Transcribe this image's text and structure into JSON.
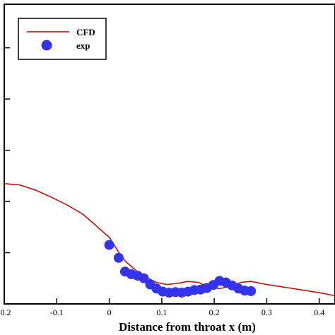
{
  "chart_data": {
    "type": "line",
    "title": "",
    "xlabel": "Distance from throat x (m)",
    "ylabel": "",
    "xlim": [
      -0.2,
      0.43
    ],
    "ylim": [
      0.0,
      5.85
    ],
    "x_ticks": [
      -0.2,
      -0.1,
      0,
      0.1,
      0.2,
      0.3,
      0.4
    ],
    "x_tick_labels": [
      "-0.2",
      "-0.1",
      "0",
      "0.1",
      "0.2",
      "0.3",
      "0.4"
    ],
    "y_ticks": [
      1,
      2,
      3,
      4,
      5
    ],
    "grid": false,
    "legend_position": "top-left",
    "series": [
      {
        "name": "CFD",
        "kind": "line",
        "color": "#cc0000",
        "x": [
          -0.2,
          -0.17,
          -0.14,
          -0.11,
          -0.08,
          -0.05,
          -0.03,
          -0.01,
          0.0,
          0.01,
          0.02,
          0.03,
          0.05,
          0.07,
          0.09,
          0.11,
          0.13,
          0.15,
          0.17,
          0.19,
          0.21,
          0.23,
          0.25,
          0.27,
          0.3,
          0.35,
          0.4,
          0.43
        ],
        "y": [
          2.35,
          2.32,
          2.22,
          2.08,
          1.93,
          1.75,
          1.57,
          1.39,
          1.3,
          1.14,
          0.98,
          0.84,
          0.66,
          0.52,
          0.42,
          0.38,
          0.4,
          0.44,
          0.42,
          0.32,
          0.3,
          0.34,
          0.42,
          0.44,
          0.38,
          0.3,
          0.22,
          0.16
        ]
      },
      {
        "name": "exp",
        "kind": "scatter",
        "color": "#3333ee",
        "x": [
          0.0,
          0.018,
          0.03,
          0.042,
          0.054,
          0.066,
          0.078,
          0.09,
          0.102,
          0.114,
          0.126,
          0.138,
          0.15,
          0.162,
          0.174,
          0.186,
          0.198,
          0.21,
          0.222,
          0.234,
          0.246,
          0.258,
          0.27
        ],
        "y": [
          1.15,
          0.9,
          0.63,
          0.58,
          0.55,
          0.5,
          0.38,
          0.3,
          0.24,
          0.22,
          0.23,
          0.22,
          0.24,
          0.27,
          0.28,
          0.31,
          0.37,
          0.45,
          0.42,
          0.36,
          0.3,
          0.26,
          0.25
        ]
      }
    ]
  }
}
